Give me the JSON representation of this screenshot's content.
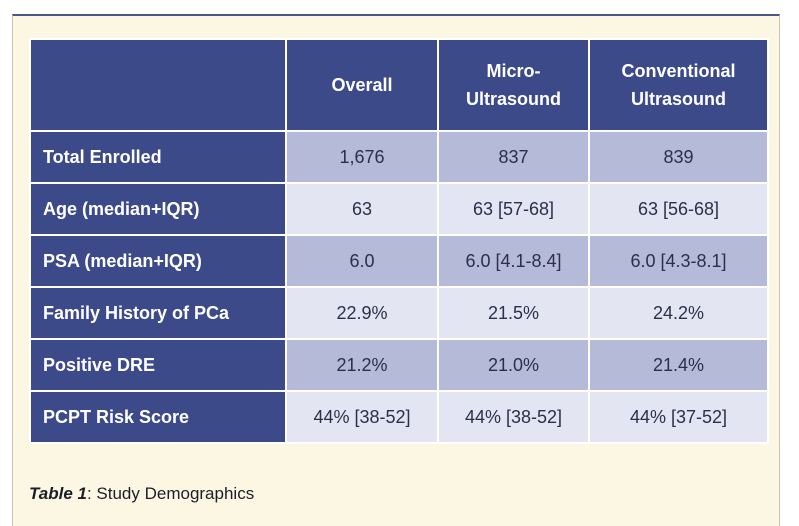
{
  "table": {
    "columns": [
      "Overall",
      "Micro-Ultrasound",
      "Conventional Ultrasound"
    ],
    "rows": [
      [
        "Total Enrolled",
        "1,676",
        "837",
        "839"
      ],
      [
        "Age (median+IQR)",
        "63",
        "63 [57-68]",
        "63 [56-68]"
      ],
      [
        "PSA (median+IQR)",
        "6.0",
        "6.0 [4.1-8.4]",
        "6.0 [4.3-8.1]"
      ],
      [
        "Family History of PCa",
        "22.9%",
        "21.5%",
        "24.2%"
      ],
      [
        "Positive DRE",
        "21.2%",
        "21.0%",
        "21.4%"
      ],
      [
        "PCPT Risk Score",
        "44% [38-52]",
        "44% [38-52]",
        "44% [37-52]"
      ]
    ]
  },
  "caption": {
    "label": "Table 1",
    "text": ": Study Demographics"
  }
}
